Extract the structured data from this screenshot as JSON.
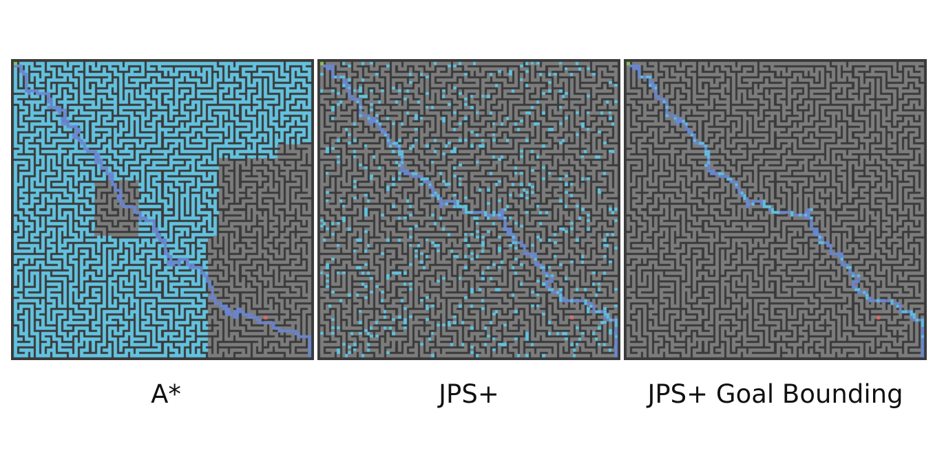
{
  "figure": {
    "panels": [
      {
        "id": "astar",
        "caption": "A*",
        "explored_style": "flood",
        "explored_fraction": 0.72
      },
      {
        "id": "jps",
        "caption": "JPS+",
        "explored_style": "sparse",
        "explored_fraction": 0.1
      },
      {
        "id": "jpsgb",
        "caption": "JPS+ Goal Bounding",
        "explored_style": "path-only",
        "explored_fraction": 0.02
      }
    ],
    "colors": {
      "wall": "#3a3a3a",
      "floor": "#7c7c7c",
      "explored": "#62c2df",
      "path": "#6a86cf",
      "start": "#8cc45a",
      "goal": "#e06b6b"
    },
    "icons": [
      "start-marker-icon",
      "goal-marker-icon"
    ]
  }
}
